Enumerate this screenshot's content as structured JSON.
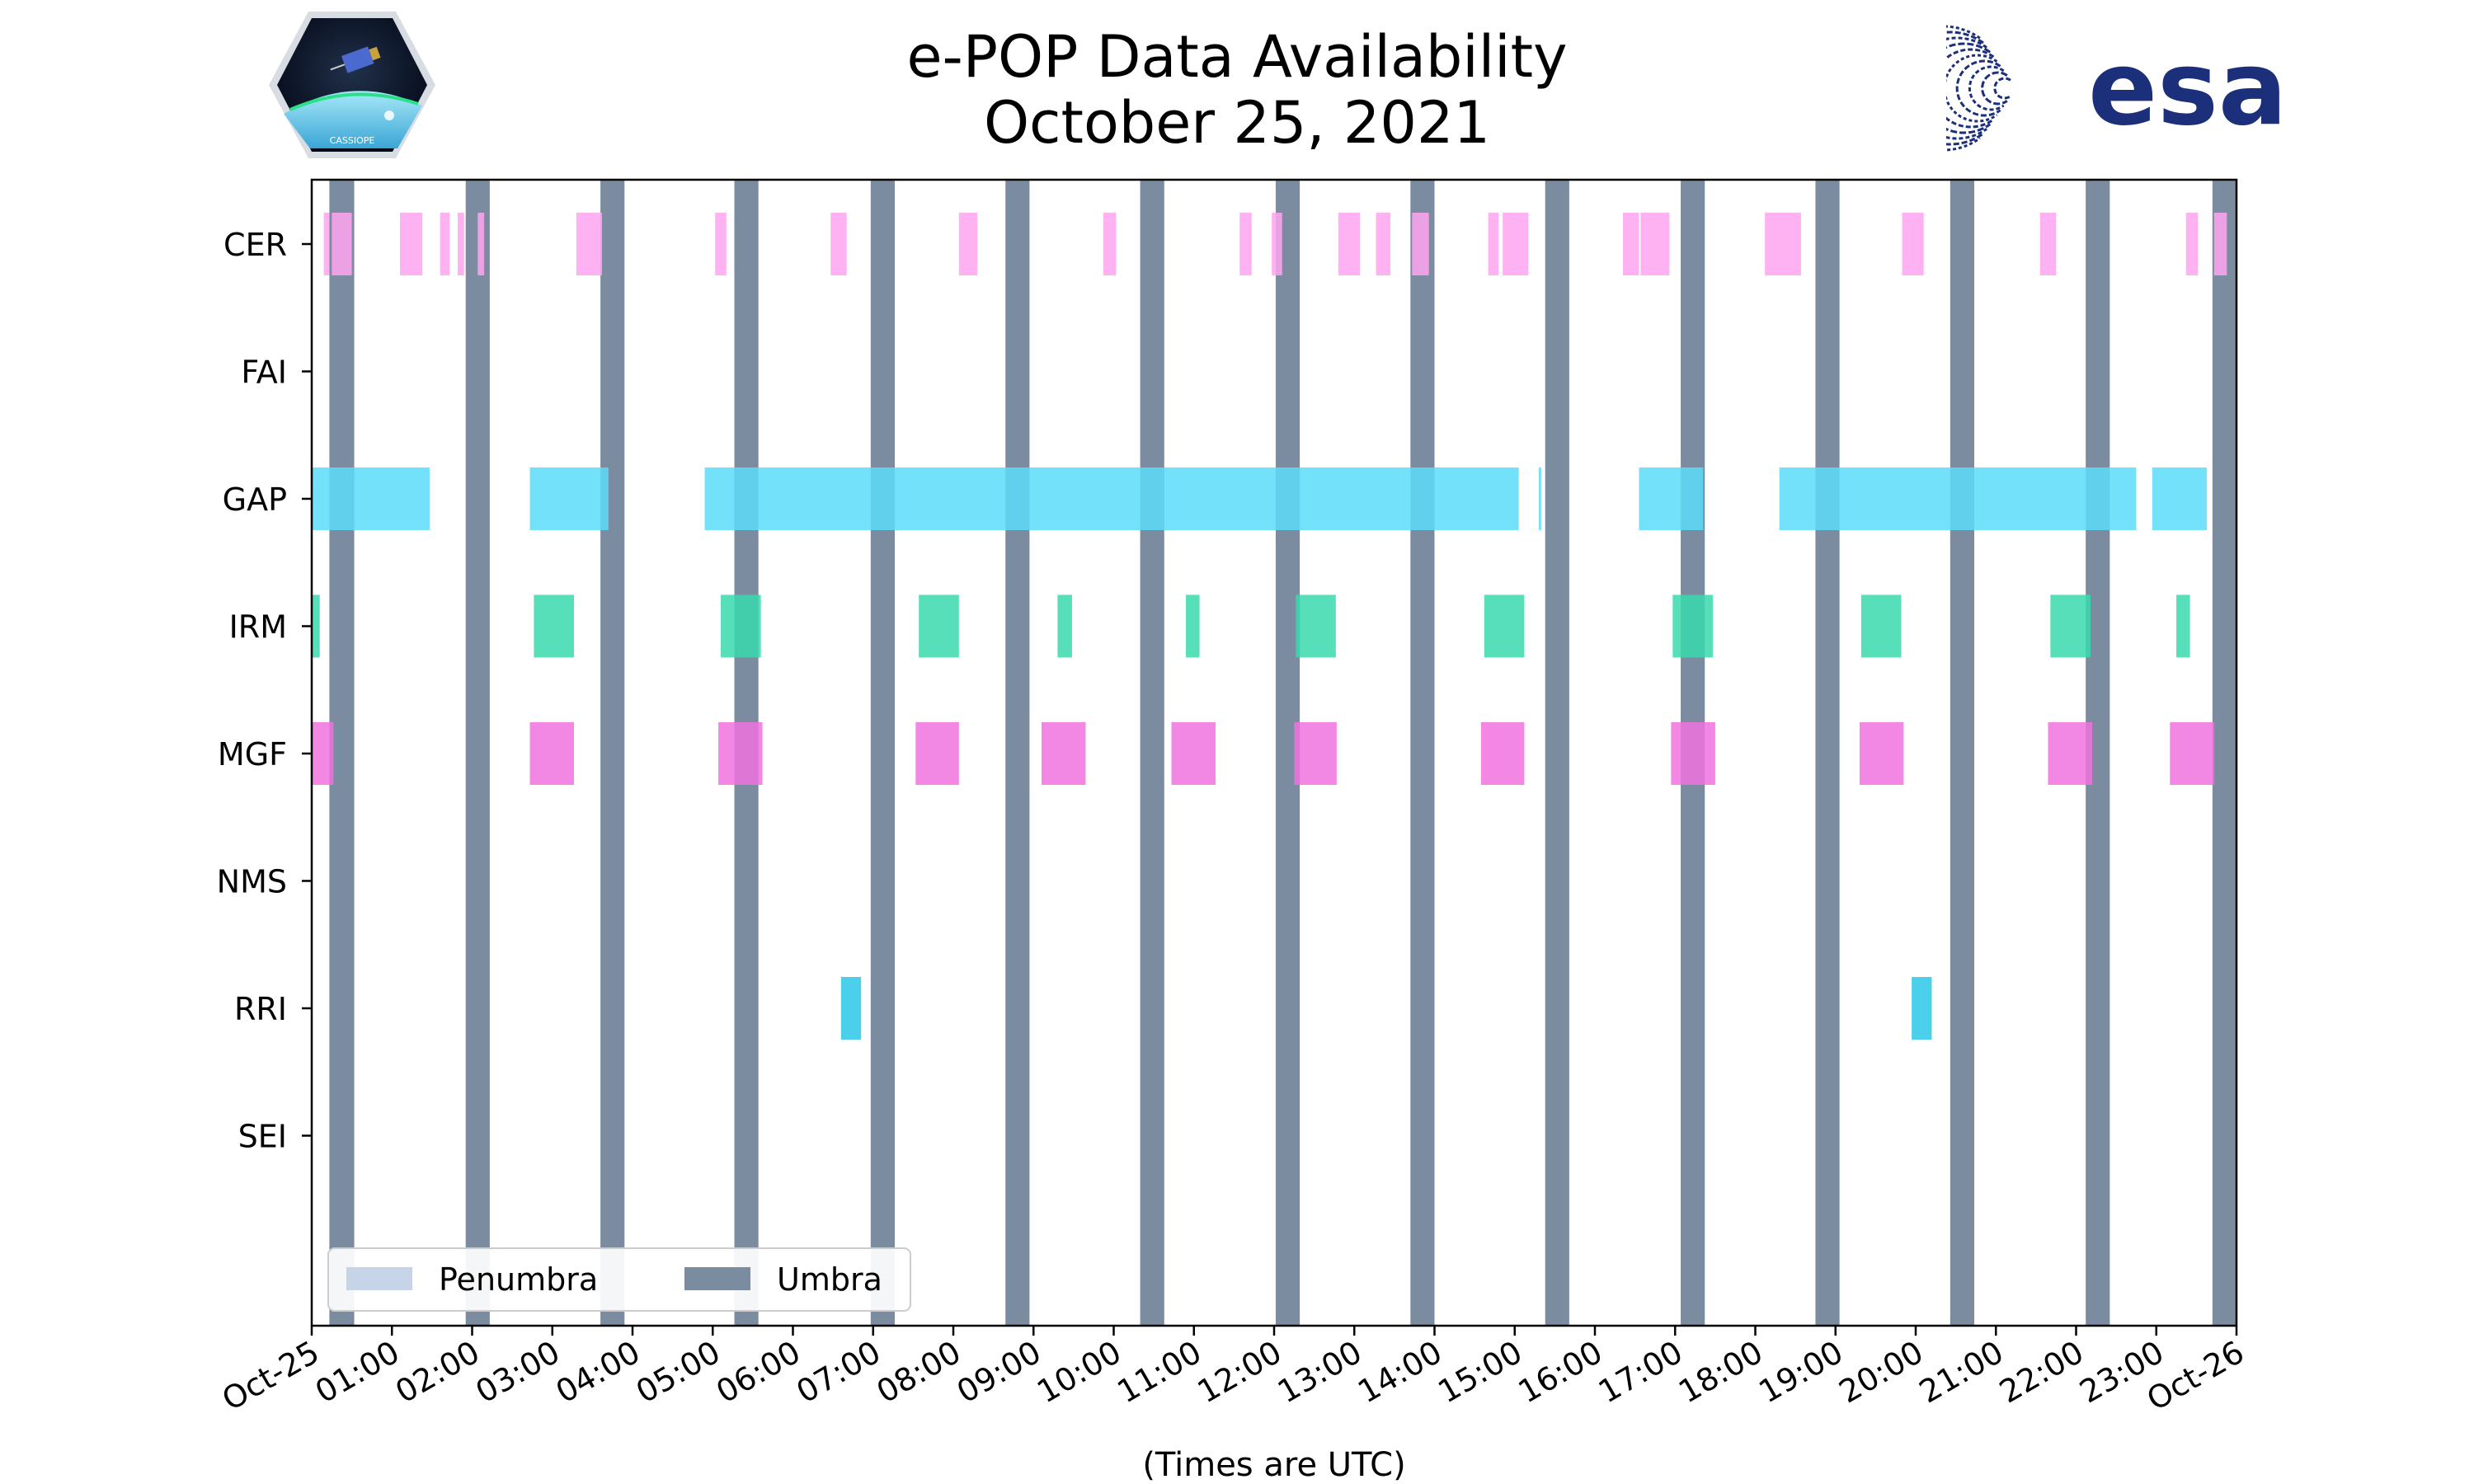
{
  "title": "e-POP Data Availability",
  "subtitle": "October 25, 2021",
  "logos": {
    "left_caption": "CASSIOPE",
    "right_text": "esa",
    "right_color": "#1c2f7b"
  },
  "chart_data": {
    "type": "timeline",
    "xlabel": "(Times are UTC)",
    "x_range_hours": [
      0,
      24
    ],
    "x_ticks": [
      "Oct-25",
      "01:00",
      "02:00",
      "03:00",
      "04:00",
      "05:00",
      "06:00",
      "07:00",
      "08:00",
      "09:00",
      "10:00",
      "11:00",
      "12:00",
      "13:00",
      "14:00",
      "15:00",
      "16:00",
      "17:00",
      "18:00",
      "19:00",
      "20:00",
      "21:00",
      "22:00",
      "23:00",
      "Oct-26"
    ],
    "categories": [
      "CER",
      "FAI",
      "GAP",
      "IRM",
      "MGF",
      "NMS",
      "RRI",
      "SEI"
    ],
    "colors": {
      "CER": "#ffa5ef",
      "GAP": "#5cdcfa",
      "IRM": "#38d9ab",
      "MGF": "#f072df",
      "RRI": "#2ac8e8",
      "umbra": "#7b8ca0",
      "penumbra": "#c5d4e6"
    },
    "legend": {
      "position": "bottom-left",
      "entries": [
        {
          "label": "Penumbra",
          "color": "#c5d4e6"
        },
        {
          "label": "Umbra",
          "color": "#7b8ca0"
        }
      ]
    },
    "umbra_intervals": [
      [
        0.22,
        0.53
      ],
      [
        1.92,
        2.22
      ],
      [
        3.6,
        3.9
      ],
      [
        5.27,
        5.57
      ],
      [
        6.97,
        7.27
      ],
      [
        8.65,
        8.95
      ],
      [
        10.33,
        10.63
      ],
      [
        12.02,
        12.32
      ],
      [
        13.7,
        14.0
      ],
      [
        15.38,
        15.68
      ],
      [
        17.07,
        17.37
      ],
      [
        18.75,
        19.05
      ],
      [
        20.43,
        20.73
      ],
      [
        22.12,
        22.42
      ],
      [
        23.7,
        24.0
      ]
    ],
    "penumbra_intervals": [],
    "series": {
      "CER": [
        [
          0.15,
          0.22
        ],
        [
          0.25,
          0.5
        ],
        [
          1.1,
          1.38
        ],
        [
          1.6,
          1.72
        ],
        [
          1.82,
          1.9
        ],
        [
          2.07,
          2.15
        ],
        [
          3.3,
          3.62
        ],
        [
          5.03,
          5.17
        ],
        [
          6.47,
          6.67
        ],
        [
          8.07,
          8.3
        ],
        [
          9.87,
          10.03
        ],
        [
          11.57,
          11.72
        ],
        [
          11.97,
          12.1
        ],
        [
          12.8,
          13.07
        ],
        [
          13.27,
          13.45
        ],
        [
          13.72,
          13.93
        ],
        [
          14.67,
          14.8
        ],
        [
          14.85,
          15.17
        ],
        [
          16.35,
          16.55
        ],
        [
          16.57,
          16.93
        ],
        [
          18.12,
          18.57
        ],
        [
          19.83,
          20.1
        ],
        [
          21.55,
          21.75
        ],
        [
          23.37,
          23.52
        ],
        [
          23.72,
          23.88
        ]
      ],
      "FAI": [],
      "GAP": [
        [
          0.0,
          1.47
        ],
        [
          2.72,
          3.7
        ],
        [
          4.9,
          15.05
        ],
        [
          15.3,
          15.33
        ],
        [
          16.55,
          17.35
        ],
        [
          18.3,
          20.0
        ],
        [
          20.0,
          22.75
        ],
        [
          22.95,
          23.63
        ]
      ],
      "IRM": [
        [
          0.0,
          0.1
        ],
        [
          2.77,
          3.27
        ],
        [
          5.1,
          5.6
        ],
        [
          7.57,
          8.07
        ],
        [
          9.3,
          9.48
        ],
        [
          10.9,
          11.07
        ],
        [
          12.27,
          12.77
        ],
        [
          14.62,
          15.12
        ],
        [
          16.97,
          17.47
        ],
        [
          19.32,
          19.82
        ],
        [
          21.68,
          22.18
        ],
        [
          23.25,
          23.42
        ]
      ],
      "MGF": [
        [
          0.0,
          0.27
        ],
        [
          2.72,
          3.27
        ],
        [
          5.07,
          5.62
        ],
        [
          7.53,
          8.07
        ],
        [
          9.1,
          9.65
        ],
        [
          10.72,
          11.27
        ],
        [
          12.25,
          12.78
        ],
        [
          14.58,
          15.12
        ],
        [
          16.95,
          17.5
        ],
        [
          19.3,
          19.85
        ],
        [
          21.65,
          22.2
        ],
        [
          23.17,
          23.72
        ]
      ],
      "NMS": [],
      "RRI": [
        [
          6.6,
          6.85
        ],
        [
          19.95,
          20.2
        ]
      ],
      "SEI": []
    }
  }
}
